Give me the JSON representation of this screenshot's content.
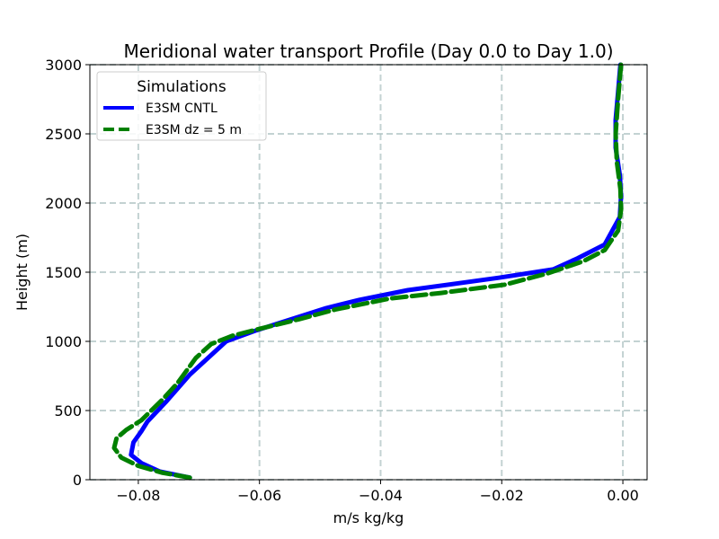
{
  "chart_data": {
    "type": "line",
    "title": "Meridional water transport Profile (Day 0.0 to Day 1.0)",
    "xlabel": "m/s kg/kg",
    "ylabel": "Height (m)",
    "xlim": [
      -0.088,
      0.004
    ],
    "ylim": [
      0,
      3000
    ],
    "xticks": [
      -0.08,
      -0.06,
      -0.04,
      -0.02,
      0.0
    ],
    "xtick_labels": [
      "−0.08",
      "−0.06",
      "−0.04",
      "−0.02",
      "0.00"
    ],
    "yticks": [
      0,
      500,
      1000,
      1500,
      2000,
      2500,
      3000
    ],
    "ytick_labels": [
      "0",
      "500",
      "1000",
      "1500",
      "2000",
      "2500",
      "3000"
    ],
    "grid": true,
    "legend": {
      "title": "Simulations",
      "position": "top-left"
    },
    "series": [
      {
        "name": "E3SM CNTL",
        "color": "#0000ff",
        "style": "solid",
        "x": [
          -0.0715,
          -0.0765,
          -0.0795,
          -0.0812,
          -0.0808,
          -0.0795,
          -0.0785,
          -0.0755,
          -0.0715,
          -0.0655,
          -0.0605,
          -0.049,
          -0.0435,
          -0.0355,
          -0.0205,
          -0.0115,
          -0.0075,
          -0.003,
          -0.0005,
          -0.0003,
          -0.0005,
          -0.0012,
          -0.0012,
          -0.0008,
          -0.0004
        ],
        "y": [
          15,
          60,
          120,
          180,
          270,
          350,
          420,
          560,
          760,
          1000,
          1080,
          1240,
          1300,
          1370,
          1460,
          1520,
          1600,
          1700,
          1900,
          2050,
          2200,
          2400,
          2600,
          2800,
          3000
        ]
      },
      {
        "name": "E3SM dz = 5 m",
        "color": "#008000",
        "style": "dashed",
        "x": [
          -0.0715,
          -0.076,
          -0.08,
          -0.0828,
          -0.084,
          -0.0836,
          -0.082,
          -0.0795,
          -0.076,
          -0.0735,
          -0.0705,
          -0.068,
          -0.0645,
          -0.06,
          -0.0535,
          -0.0475,
          -0.0385,
          -0.03,
          -0.0195,
          -0.0125,
          -0.0065,
          -0.003,
          -0.0008,
          -0.0003,
          -0.0004,
          -0.001,
          -0.0012,
          -0.0008,
          -0.0003
        ],
        "y": [
          15,
          50,
          100,
          160,
          230,
          300,
          360,
          430,
          580,
          700,
          880,
          980,
          1040,
          1090,
          1160,
          1230,
          1310,
          1350,
          1410,
          1490,
          1580,
          1660,
          1800,
          1950,
          2100,
          2300,
          2500,
          2750,
          3000
        ]
      }
    ]
  }
}
